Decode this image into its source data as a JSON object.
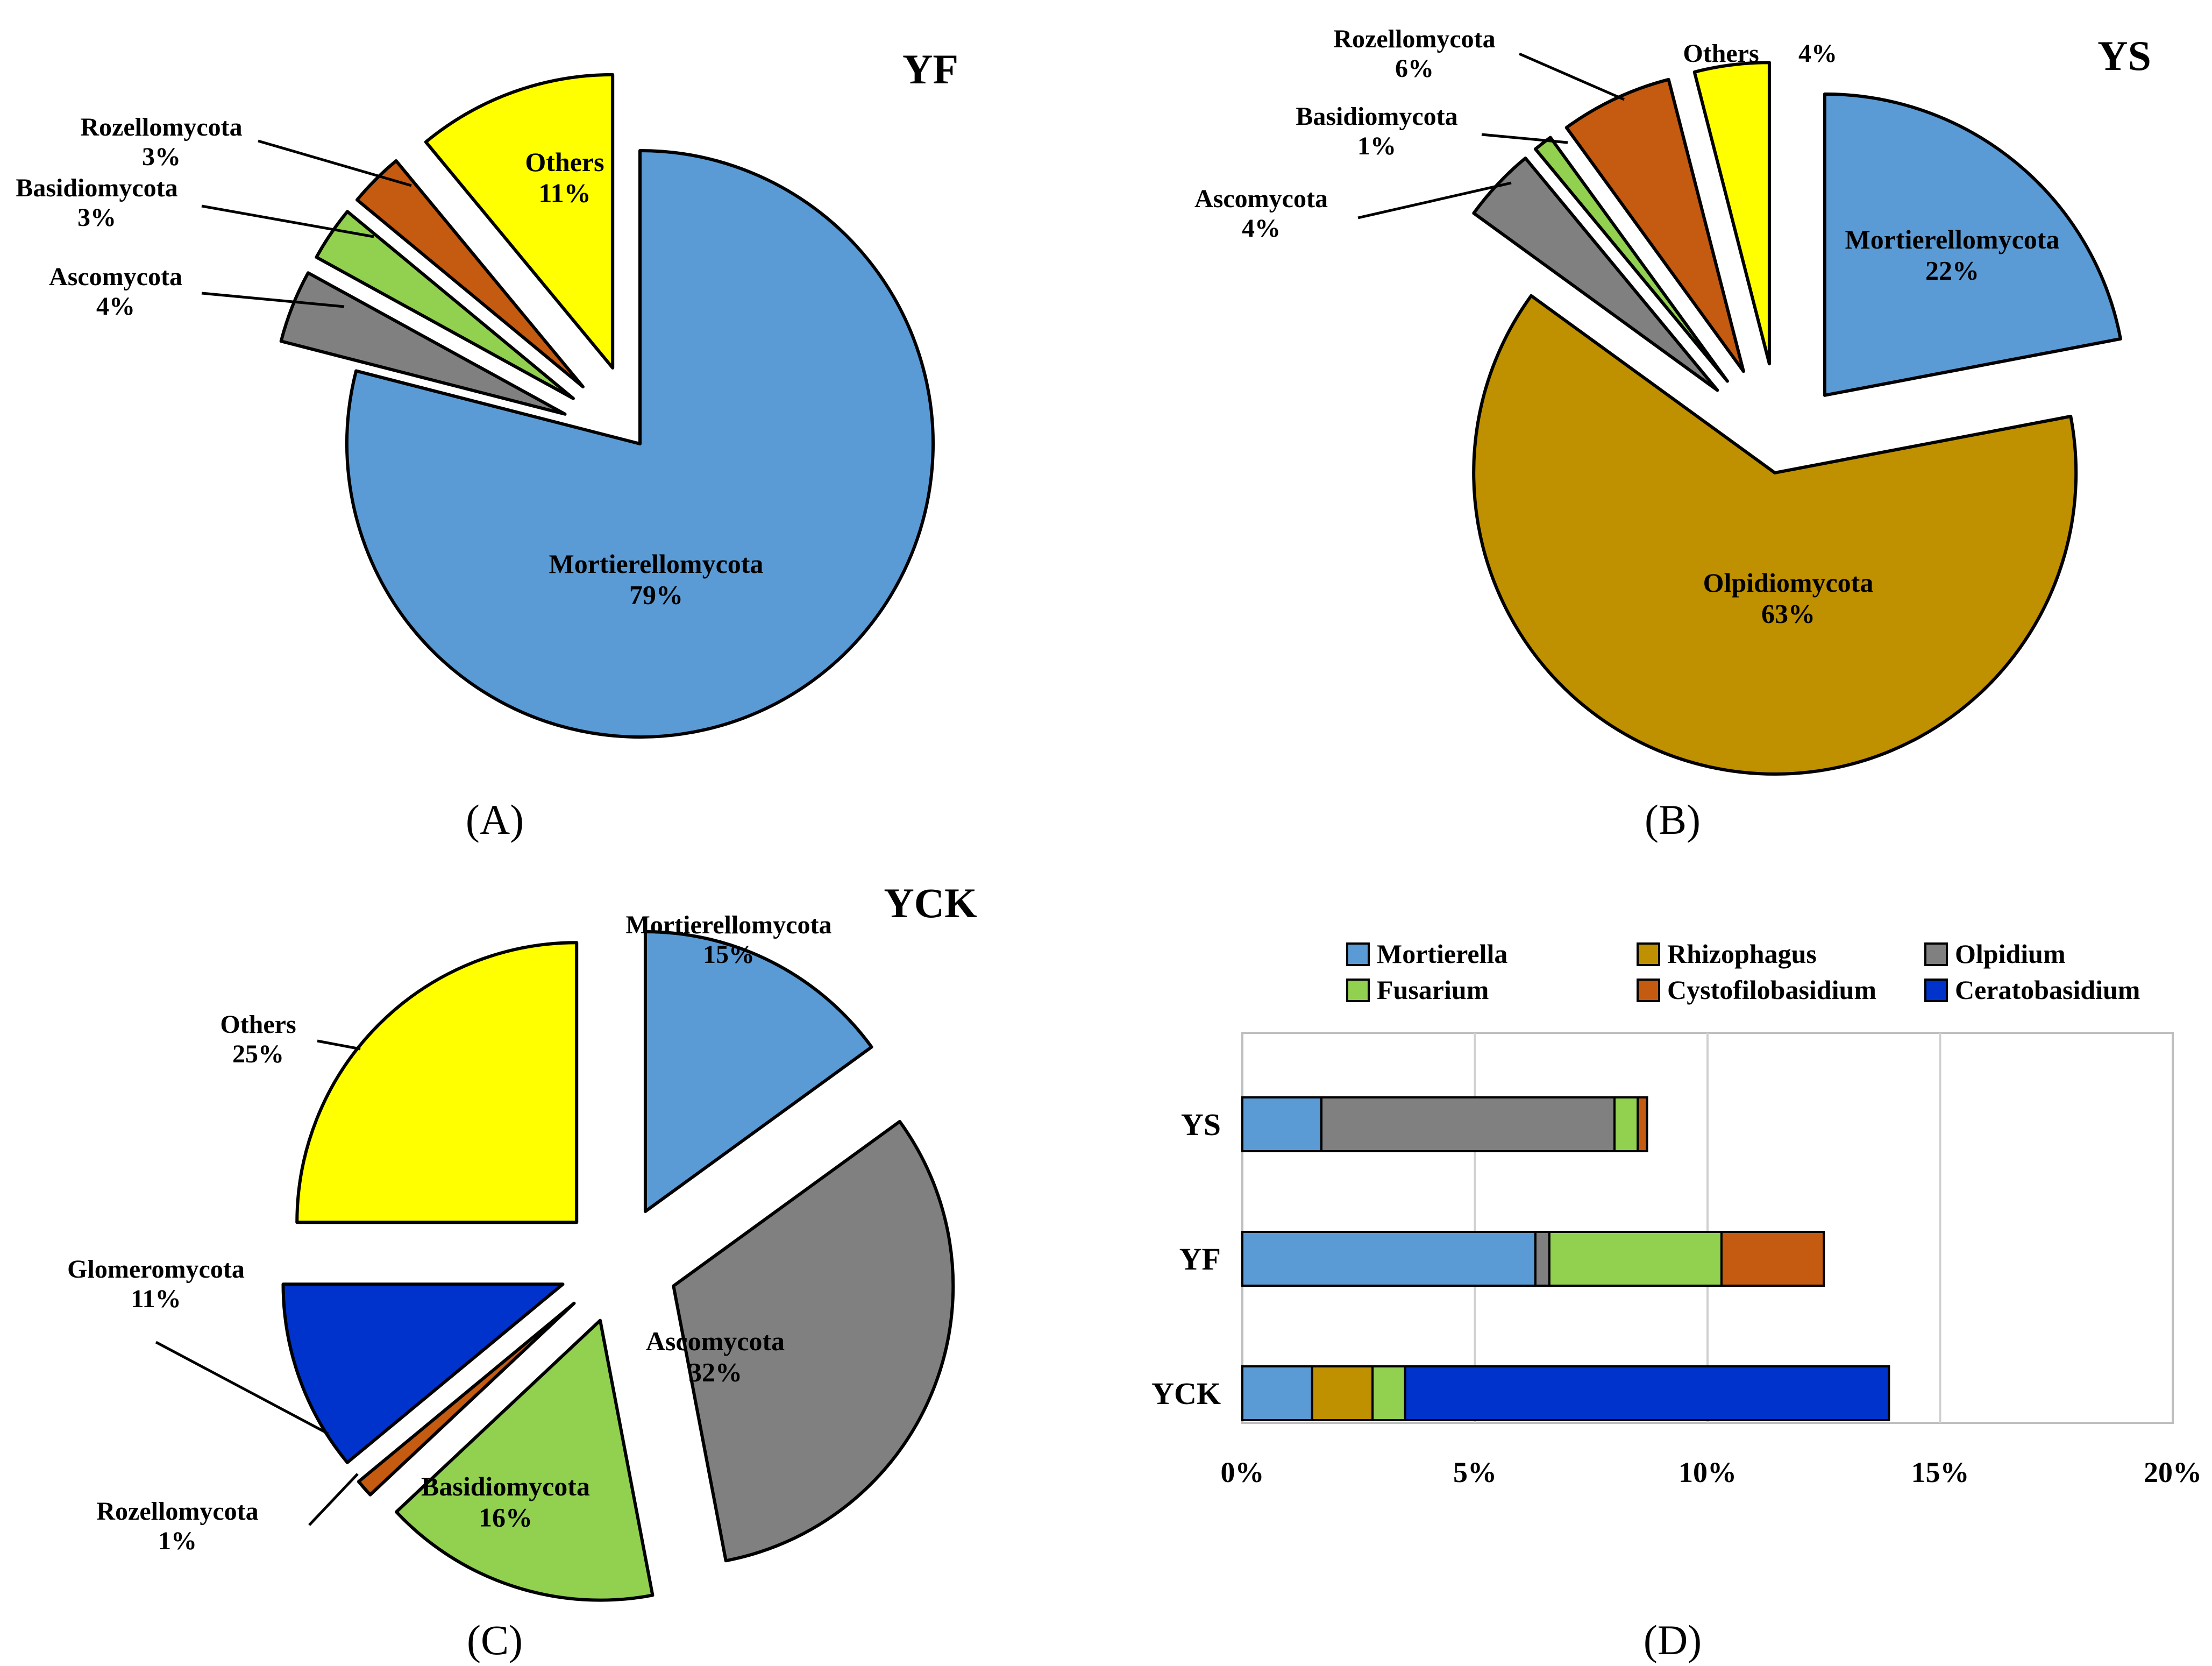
{
  "panel_labels": [
    "(A)",
    "(B)",
    "(C)",
    "(D)"
  ],
  "colors": {
    "Mortierellomycota": "#5b9bd5",
    "Olpidiomycota": "#bf9000",
    "Ascomycota": "#808080",
    "Basidiomycota": "#92d050",
    "Rozellomycota": "#c55a11",
    "Others": "#ffff00",
    "Glomeromycota": "#0033cc",
    "Mortierella": "#5b9bd5",
    "Rhizophagus": "#bf9000",
    "Olpidium": "#808080",
    "Fusarium": "#92d050",
    "Cystofilobasidium": "#c55a11",
    "Ceratobasidium": "#0033cc"
  },
  "chart_data": [
    {
      "type": "pie",
      "title": "YF",
      "slices": [
        {
          "label": "Mortierellomycota",
          "value": 79,
          "text": "79%"
        },
        {
          "label": "Ascomycota",
          "value": 4,
          "text": "4%"
        },
        {
          "label": "Basidiomycota",
          "value": 3,
          "text": "3%"
        },
        {
          "label": "Rozellomycota",
          "value": 3,
          "text": "3%"
        },
        {
          "label": "Others",
          "value": 11,
          "text": "11%"
        }
      ]
    },
    {
      "type": "pie",
      "title": "YS",
      "slices": [
        {
          "label": "Mortierellomycota",
          "value": 22,
          "text": "22%"
        },
        {
          "label": "Olpidiomycota",
          "value": 63,
          "text": "63%"
        },
        {
          "label": "Ascomycota",
          "value": 4,
          "text": "4%"
        },
        {
          "label": "Basidiomycota",
          "value": 1,
          "text": "1%"
        },
        {
          "label": "Rozellomycota",
          "value": 6,
          "text": "6%"
        },
        {
          "label": "Others",
          "value": 4,
          "text": "4%"
        }
      ]
    },
    {
      "type": "pie",
      "title": "YCK",
      "slices": [
        {
          "label": "Mortierellomycota",
          "value": 15,
          "text": "15%"
        },
        {
          "label": "Ascomycota",
          "value": 32,
          "text": "32%"
        },
        {
          "label": "Basidiomycota",
          "value": 16,
          "text": "16%"
        },
        {
          "label": "Rozellomycota",
          "value": 1,
          "text": "1%"
        },
        {
          "label": "Glomeromycota",
          "value": 11,
          "text": "11%"
        },
        {
          "label": "Others",
          "value": 25,
          "text": "25%"
        }
      ]
    },
    {
      "type": "bar",
      "orientation": "horizontal",
      "stacked": true,
      "categories": [
        "YS",
        "YF",
        "YCK"
      ],
      "series": [
        {
          "name": "Mortierella",
          "values": [
            1.7,
            6.3,
            1.5
          ]
        },
        {
          "name": "Rhizophagus",
          "values": [
            0,
            0,
            1.3
          ]
        },
        {
          "name": "Olpidium",
          "values": [
            6.3,
            0.3,
            0
          ]
        },
        {
          "name": "Fusarium",
          "values": [
            0.5,
            3.7,
            0.7
          ]
        },
        {
          "name": "Cystofilobasidium",
          "values": [
            0.2,
            2.2,
            0
          ]
        },
        {
          "name": "Ceratobasidium",
          "values": [
            0,
            0,
            10.4
          ]
        }
      ],
      "xlim": [
        0,
        20
      ],
      "xticks": [
        "0%",
        "5%",
        "10%",
        "15%",
        "20%"
      ],
      "legend": [
        "Mortierella",
        "Rhizophagus",
        "Olpidium",
        "Fusarium",
        "Cystofilobasidium",
        "Ceratobasidium"
      ],
      "legend_position": "top",
      "grid": true
    }
  ]
}
